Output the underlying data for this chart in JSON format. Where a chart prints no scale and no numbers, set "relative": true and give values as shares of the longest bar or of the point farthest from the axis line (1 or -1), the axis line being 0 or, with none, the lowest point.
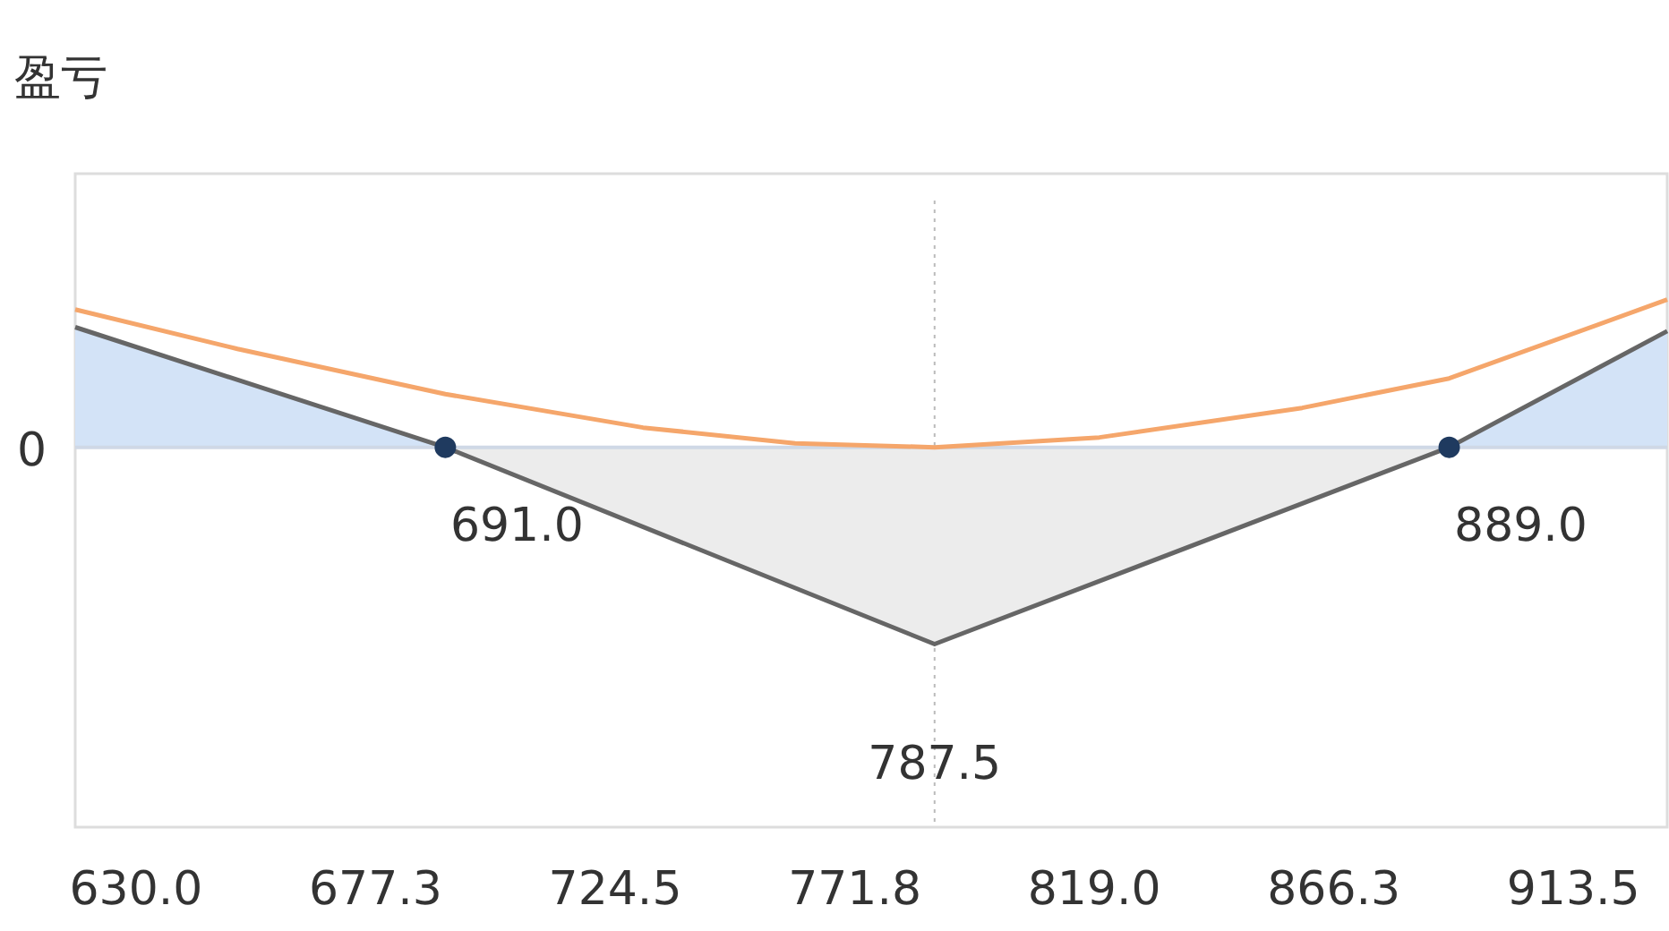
{
  "chart_data": {
    "type": "line",
    "ylabel": "盈亏",
    "relative": true,
    "xlim": [
      618,
      932
    ],
    "xticks": [
      {
        "value": 630,
        "label": "630.0"
      },
      {
        "value": 677.25,
        "label": "677.3"
      },
      {
        "value": 724.5,
        "label": "724.5"
      },
      {
        "value": 771.75,
        "label": "771.8"
      },
      {
        "value": 819,
        "label": "819.0"
      },
      {
        "value": 866.25,
        "label": "866.3"
      },
      {
        "value": 913.5,
        "label": "913.5"
      }
    ],
    "series": [
      {
        "type": "area",
        "color": "#666666",
        "x": [
          618,
          691,
          787.5,
          889,
          932
        ],
        "values": [
          0.61,
          0,
          -1,
          0,
          0.59
        ]
      },
      {
        "color": "#f5a66b",
        "x": [
          618,
          650,
          691,
          730,
          760,
          787.5,
          820,
          860,
          889,
          932
        ],
        "values": [
          0.7,
          0.5,
          0.27,
          0.1,
          0.02,
          0,
          0.05,
          0.2,
          0.35,
          0.75
        ]
      },
      {
        "type": "scatter",
        "color": "#1f3a5f",
        "marker": "circle",
        "x": [
          691,
          889
        ],
        "values": [
          0,
          0
        ]
      }
    ],
    "ref_lines": [
      {
        "axis": "x",
        "value": 787.5,
        "color": "#bbbbbb",
        "line_style": "dotted"
      }
    ],
    "annotations": [
      "0",
      {
        "text": "691.0",
        "x": 691,
        "y": 0
      },
      {
        "text": "889.0",
        "x": 889,
        "y": 0
      },
      {
        "text": "787.5",
        "x": 787.5,
        "y": -1
      }
    ],
    "grid": false
  }
}
